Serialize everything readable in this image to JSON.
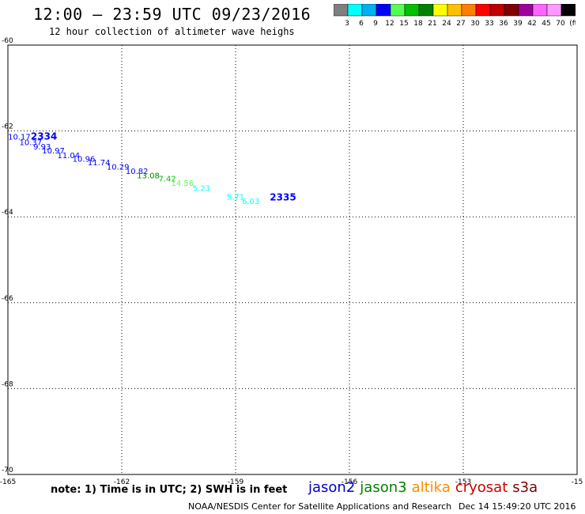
{
  "title": "12:00 – 23:59 UTC 09/23/2016",
  "subtitle": "12 hour collection of altimeter wave heighs",
  "color_scale": {
    "colors": [
      "#808080",
      "#00ffff",
      "#00b0f0",
      "#0000ff",
      "#55ff55",
      "#00c000",
      "#008000",
      "#ffff00",
      "#ffc000",
      "#ff8000",
      "#ff0000",
      "#c00000",
      "#800000",
      "#a000a0",
      "#ff66ff",
      "#ff99ff",
      "#000000"
    ],
    "labels": [
      "3",
      "6",
      "9",
      "12",
      "15",
      "18",
      "21",
      "24",
      "27",
      "30",
      "33",
      "36",
      "39",
      "42",
      "45",
      "70",
      "(ft)"
    ]
  },
  "chart_data": {
    "type": "scatter",
    "xlim": [
      -165,
      -150
    ],
    "ylim": [
      -70,
      -60
    ],
    "x_ticks": [
      "-165",
      "-162",
      "-159",
      "-156",
      "-153",
      "-15"
    ],
    "y_ticks": [
      "-60",
      "-62",
      "-64",
      "-66",
      "-68",
      "-70"
    ],
    "grid": true,
    "points": [
      {
        "lon": -164.7,
        "lat": -62.2,
        "label": "10.17",
        "color": "#0000ff"
      },
      {
        "lon": -164.4,
        "lat": -62.33,
        "label": "10.37",
        "color": "#0000ff"
      },
      {
        "lon": -164.1,
        "lat": -62.43,
        "label": "9.93",
        "color": "#0000ff"
      },
      {
        "lon": -163.8,
        "lat": -62.52,
        "label": "10.97",
        "color": "#0000ff"
      },
      {
        "lon": -163.4,
        "lat": -62.63,
        "label": "11.04",
        "color": "#0000ff"
      },
      {
        "lon": -163.0,
        "lat": -62.72,
        "label": "10.96",
        "color": "#0000ff"
      },
      {
        "lon": -162.6,
        "lat": -62.8,
        "label": "11.74",
        "color": "#0000ff"
      },
      {
        "lon": -162.1,
        "lat": -62.9,
        "label": "10.29",
        "color": "#0000ff"
      },
      {
        "lon": -161.6,
        "lat": -63.0,
        "label": "10.82",
        "color": "#0000ff"
      },
      {
        "lon": -161.3,
        "lat": -63.1,
        "label": "13.08",
        "color": "#008000"
      },
      {
        "lon": -160.8,
        "lat": -63.18,
        "label": "7.42",
        "color": "#00c000"
      },
      {
        "lon": -160.4,
        "lat": -63.28,
        "label": "14.56",
        "color": "#55ff55"
      },
      {
        "lon": -159.9,
        "lat": -63.4,
        "label": "5.23",
        "color": "#00ffff"
      },
      {
        "lon": -159.0,
        "lat": -63.6,
        "label": "5.71",
        "color": "#00ffff"
      },
      {
        "lon": -158.6,
        "lat": -63.7,
        "label": "6.03",
        "color": "#00ffff"
      }
    ],
    "time_labels": [
      {
        "lon": -164.05,
        "lat": -62.2,
        "label": "2334",
        "color": "#0000ff"
      },
      {
        "lon": -157.75,
        "lat": -63.62,
        "label": "2335",
        "color": "#0000ff"
      }
    ]
  },
  "footer": {
    "note": "note: 1) Time is in UTC; 2) SWH is in feet",
    "satellites": [
      {
        "name": "jason2",
        "color": "#0000cc"
      },
      {
        "name": "jason3",
        "color": "#008000"
      },
      {
        "name": "altika",
        "color": "#ff8c00"
      },
      {
        "name": "cryosat",
        "color": "#cc0000"
      },
      {
        "name": "s3a",
        "color": "#800000"
      }
    ],
    "credit": "NOAA/NESDIS Center for Satellite Applications and Research",
    "timestamp": "Dec 14 15:49:20 UTC 2016"
  }
}
